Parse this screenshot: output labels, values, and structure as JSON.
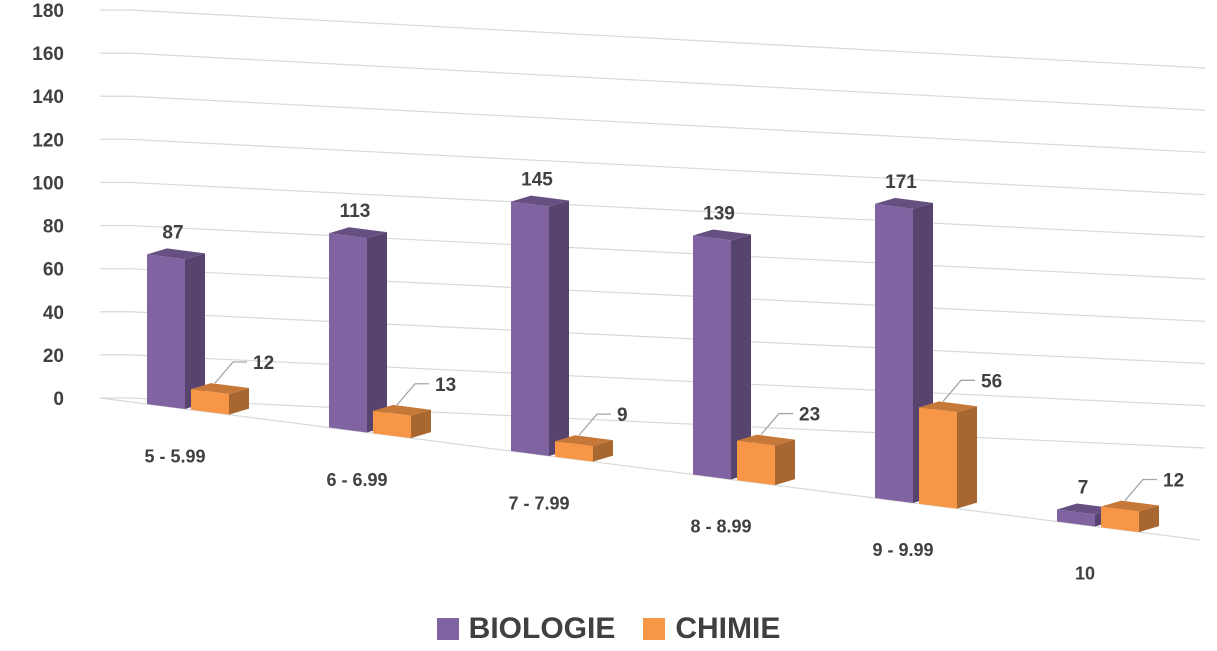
{
  "chart_data": {
    "type": "bar",
    "categories": [
      "5 - 5.99",
      "6 - 6.99",
      "7 - 7.99",
      "8 - 8.99",
      "9 - 9.99",
      "10"
    ],
    "series": [
      {
        "name": "BIOLOGIE",
        "values": [
          87,
          113,
          145,
          139,
          171,
          7
        ],
        "color": "#8064a2"
      },
      {
        "name": "CHIMIE",
        "values": [
          12,
          13,
          9,
          23,
          56,
          12
        ],
        "color": "#f79646"
      }
    ],
    "yticks": [
      "0",
      "20",
      "40",
      "60",
      "80",
      "100",
      "120",
      "140",
      "160",
      "180"
    ],
    "ylim": [
      0,
      180
    ],
    "grid": true,
    "legend_position": "bottom",
    "style": "3d-column-perspective"
  }
}
